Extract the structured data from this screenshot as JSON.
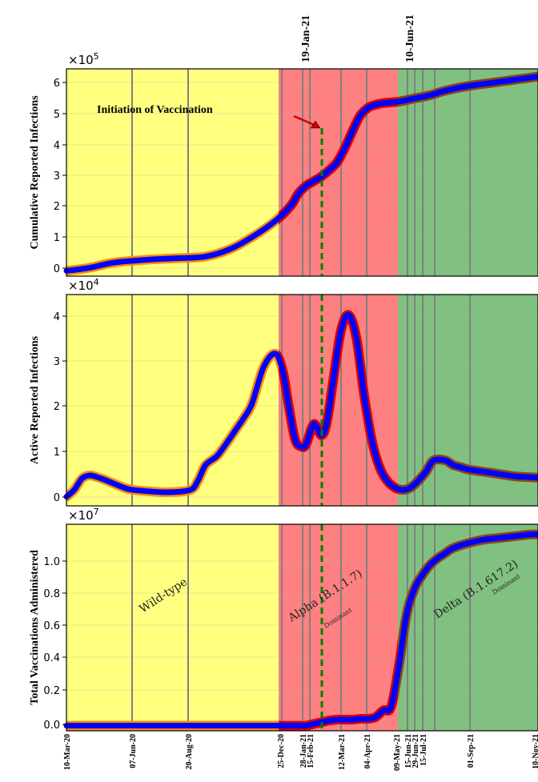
{
  "colors": {
    "wild_type": "#ffff80",
    "alpha": "#ff8080",
    "delta": "#80c080",
    "model_line": "#0000ff",
    "data_orange": "#ff8c00",
    "data_red": "#dd0000",
    "data_brown": "#8b4513",
    "vaccination_line": "#008000",
    "event_line": "#808080",
    "arrow": "#cc0000"
  },
  "x_axis": {
    "ticks": [
      "10-Mar-20",
      "07-Jun-20",
      "20-Aug-20",
      "25-Dec-20",
      "28-Jan-21",
      "15-Feb-21",
      "12-Mar-21",
      "04-Apr-21",
      "09-May-21",
      "15-Jun-21",
      "29-Jun-21",
      "15-Jul-21",
      "01-Sep-21",
      "10-Nov-21"
    ]
  },
  "top_dates": [
    "19-Jan-21",
    "10-Jun-21"
  ],
  "annotation": "Initiation of Vaccination",
  "era_labels": {
    "wild": "Wild-type",
    "alpha": "Alpha (B.1.1.7)",
    "alpha_sub": "Dominant",
    "delta": "Delta (B.1.617.2)",
    "delta_sub": "Dominant"
  },
  "chart_data": [
    {
      "type": "line",
      "ylabel": "Cumulative Reported Infections",
      "multiplier": "×10",
      "multiplier_exp": "5",
      "yticks": [
        "0",
        "1",
        "2",
        "3",
        "4",
        "5",
        "6"
      ],
      "ylim": [
        -0.15,
        6.5
      ],
      "x_days": [
        0,
        30,
        60,
        90,
        120,
        150,
        180,
        210,
        240,
        270,
        290,
        300,
        310,
        320,
        330,
        340,
        350,
        360,
        370,
        380,
        390,
        400,
        410,
        430,
        450,
        470,
        490,
        520,
        550,
        580,
        610
      ],
      "series": [
        {
          "values": [
            0.02,
            0.12,
            0.28,
            0.35,
            0.4,
            0.43,
            0.48,
            0.7,
            1.1,
            1.62,
            2.1,
            2.5,
            2.75,
            2.9,
            3.05,
            3.25,
            3.5,
            3.95,
            4.5,
            5.0,
            5.25,
            5.35,
            5.4,
            5.45,
            5.55,
            5.65,
            5.8,
            5.95,
            6.05,
            6.15,
            6.25
          ]
        }
      ]
    },
    {
      "type": "line",
      "ylabel": "Active Reported Infections",
      "multiplier": "×10",
      "multiplier_exp": "4",
      "yticks": [
        "0",
        "1",
        "2",
        "3",
        "4"
      ],
      "ylim": [
        -0.15,
        4.5
      ],
      "x_days": [
        0,
        10,
        20,
        30,
        40,
        50,
        60,
        80,
        100,
        130,
        160,
        170,
        180,
        195,
        210,
        220,
        230,
        240,
        255,
        270,
        280,
        288,
        296,
        304,
        310,
        320,
        330,
        337,
        345,
        355,
        365,
        375,
        385,
        395,
        405,
        415,
        425,
        435,
        445,
        455,
        465,
        475,
        490,
        500,
        510,
        520,
        540,
        560,
        580,
        600,
        610
      ],
      "series": [
        {
          "values": [
            0.05,
            0.2,
            0.45,
            0.52,
            0.48,
            0.42,
            0.35,
            0.22,
            0.18,
            0.15,
            0.2,
            0.4,
            0.75,
            0.95,
            1.3,
            1.55,
            1.8,
            2.1,
            2.9,
            3.2,
            2.8,
            2.0,
            1.3,
            1.15,
            1.2,
            1.65,
            1.4,
            1.7,
            2.6,
            3.7,
            4.05,
            3.55,
            2.3,
            1.3,
            0.7,
            0.4,
            0.25,
            0.2,
            0.25,
            0.4,
            0.6,
            0.85,
            0.85,
            0.75,
            0.7,
            0.65,
            0.6,
            0.55,
            0.5,
            0.48,
            0.47
          ]
        }
      ]
    },
    {
      "type": "line",
      "ylabel": "Total Vaccinations Administered",
      "multiplier": "×10",
      "multiplier_exp": "7",
      "yticks": [
        "0.0",
        "0.2",
        "0.4",
        "0.6",
        "0.8",
        "1.0"
      ],
      "ylim": [
        -0.03,
        1.18
      ],
      "x_days": [
        0,
        50,
        100,
        150,
        200,
        250,
        300,
        310,
        320,
        330,
        340,
        350,
        360,
        370,
        380,
        390,
        400,
        410,
        420,
        430,
        440,
        450,
        460,
        470,
        480,
        490,
        500,
        520,
        540,
        560,
        580,
        600,
        610
      ],
      "series": [
        {
          "values": [
            0.0,
            0.0,
            0.0,
            0.0,
            0.0,
            0.0,
            0.0,
            0.0,
            0.01,
            0.02,
            0.03,
            0.035,
            0.035,
            0.035,
            0.04,
            0.04,
            0.05,
            0.09,
            0.11,
            0.35,
            0.65,
            0.8,
            0.88,
            0.94,
            0.98,
            1.01,
            1.04,
            1.07,
            1.09,
            1.1,
            1.11,
            1.12,
            1.12
          ]
        }
      ]
    }
  ]
}
